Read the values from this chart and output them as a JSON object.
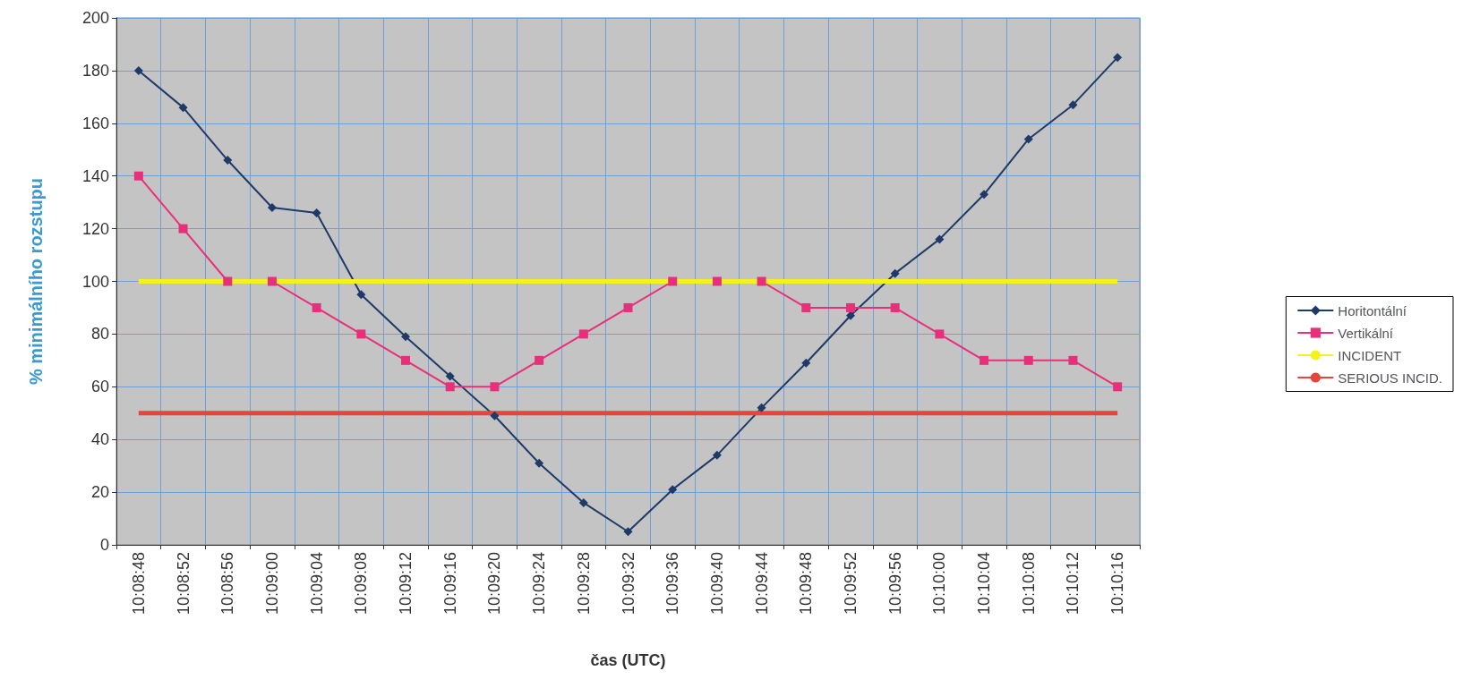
{
  "chart_data": {
    "type": "line",
    "xlabel": "čas (UTC)",
    "ylabel": "% minimálního rozstupu",
    "categories": [
      "10:08:48",
      "10:08:52",
      "10:08:56",
      "10:09:00",
      "10:09:04",
      "10:09:08",
      "10:09:12",
      "10:09:16",
      "10:09:20",
      "10:09:24",
      "10:09:28",
      "10:09:32",
      "10:09:36",
      "10:09:40",
      "10:09:44",
      "10:09:48",
      "10:09:52",
      "10:09:56",
      "10:10:00",
      "10:10:04",
      "10:10:08",
      "10:10:12",
      "10:10:16"
    ],
    "series": [
      {
        "name": "Horitontální",
        "color": "#1f3a68",
        "marker": "diamond",
        "values": [
          180,
          166,
          146,
          128,
          126,
          95,
          79,
          64,
          49,
          31,
          16,
          5,
          21,
          34,
          52,
          69,
          87,
          103,
          116,
          133,
          154,
          167,
          185
        ]
      },
      {
        "name": "Vertikální",
        "color": "#e8307a",
        "marker": "square",
        "values": [
          140,
          120,
          100,
          100,
          90,
          80,
          70,
          60,
          60,
          70,
          80,
          90,
          100,
          100,
          100,
          90,
          90,
          90,
          80,
          70,
          70,
          70,
          60
        ]
      },
      {
        "name": "INCIDENT",
        "color": "#f5f020",
        "marker": "none",
        "values": [
          100,
          100,
          100,
          100,
          100,
          100,
          100,
          100,
          100,
          100,
          100,
          100,
          100,
          100,
          100,
          100,
          100,
          100,
          100,
          100,
          100,
          100,
          100
        ]
      },
      {
        "name": "SERIOUS INCID.",
        "color": "#e8443a",
        "marker": "none",
        "values": [
          50,
          50,
          50,
          50,
          50,
          50,
          50,
          50,
          50,
          50,
          50,
          50,
          50,
          50,
          50,
          50,
          50,
          50,
          50,
          50,
          50,
          50,
          50
        ]
      }
    ],
    "ylim": [
      0,
      200
    ],
    "yticks": [
      0,
      20,
      40,
      60,
      80,
      100,
      120,
      140,
      160,
      180,
      200
    ],
    "grid": true,
    "legend": "right"
  }
}
